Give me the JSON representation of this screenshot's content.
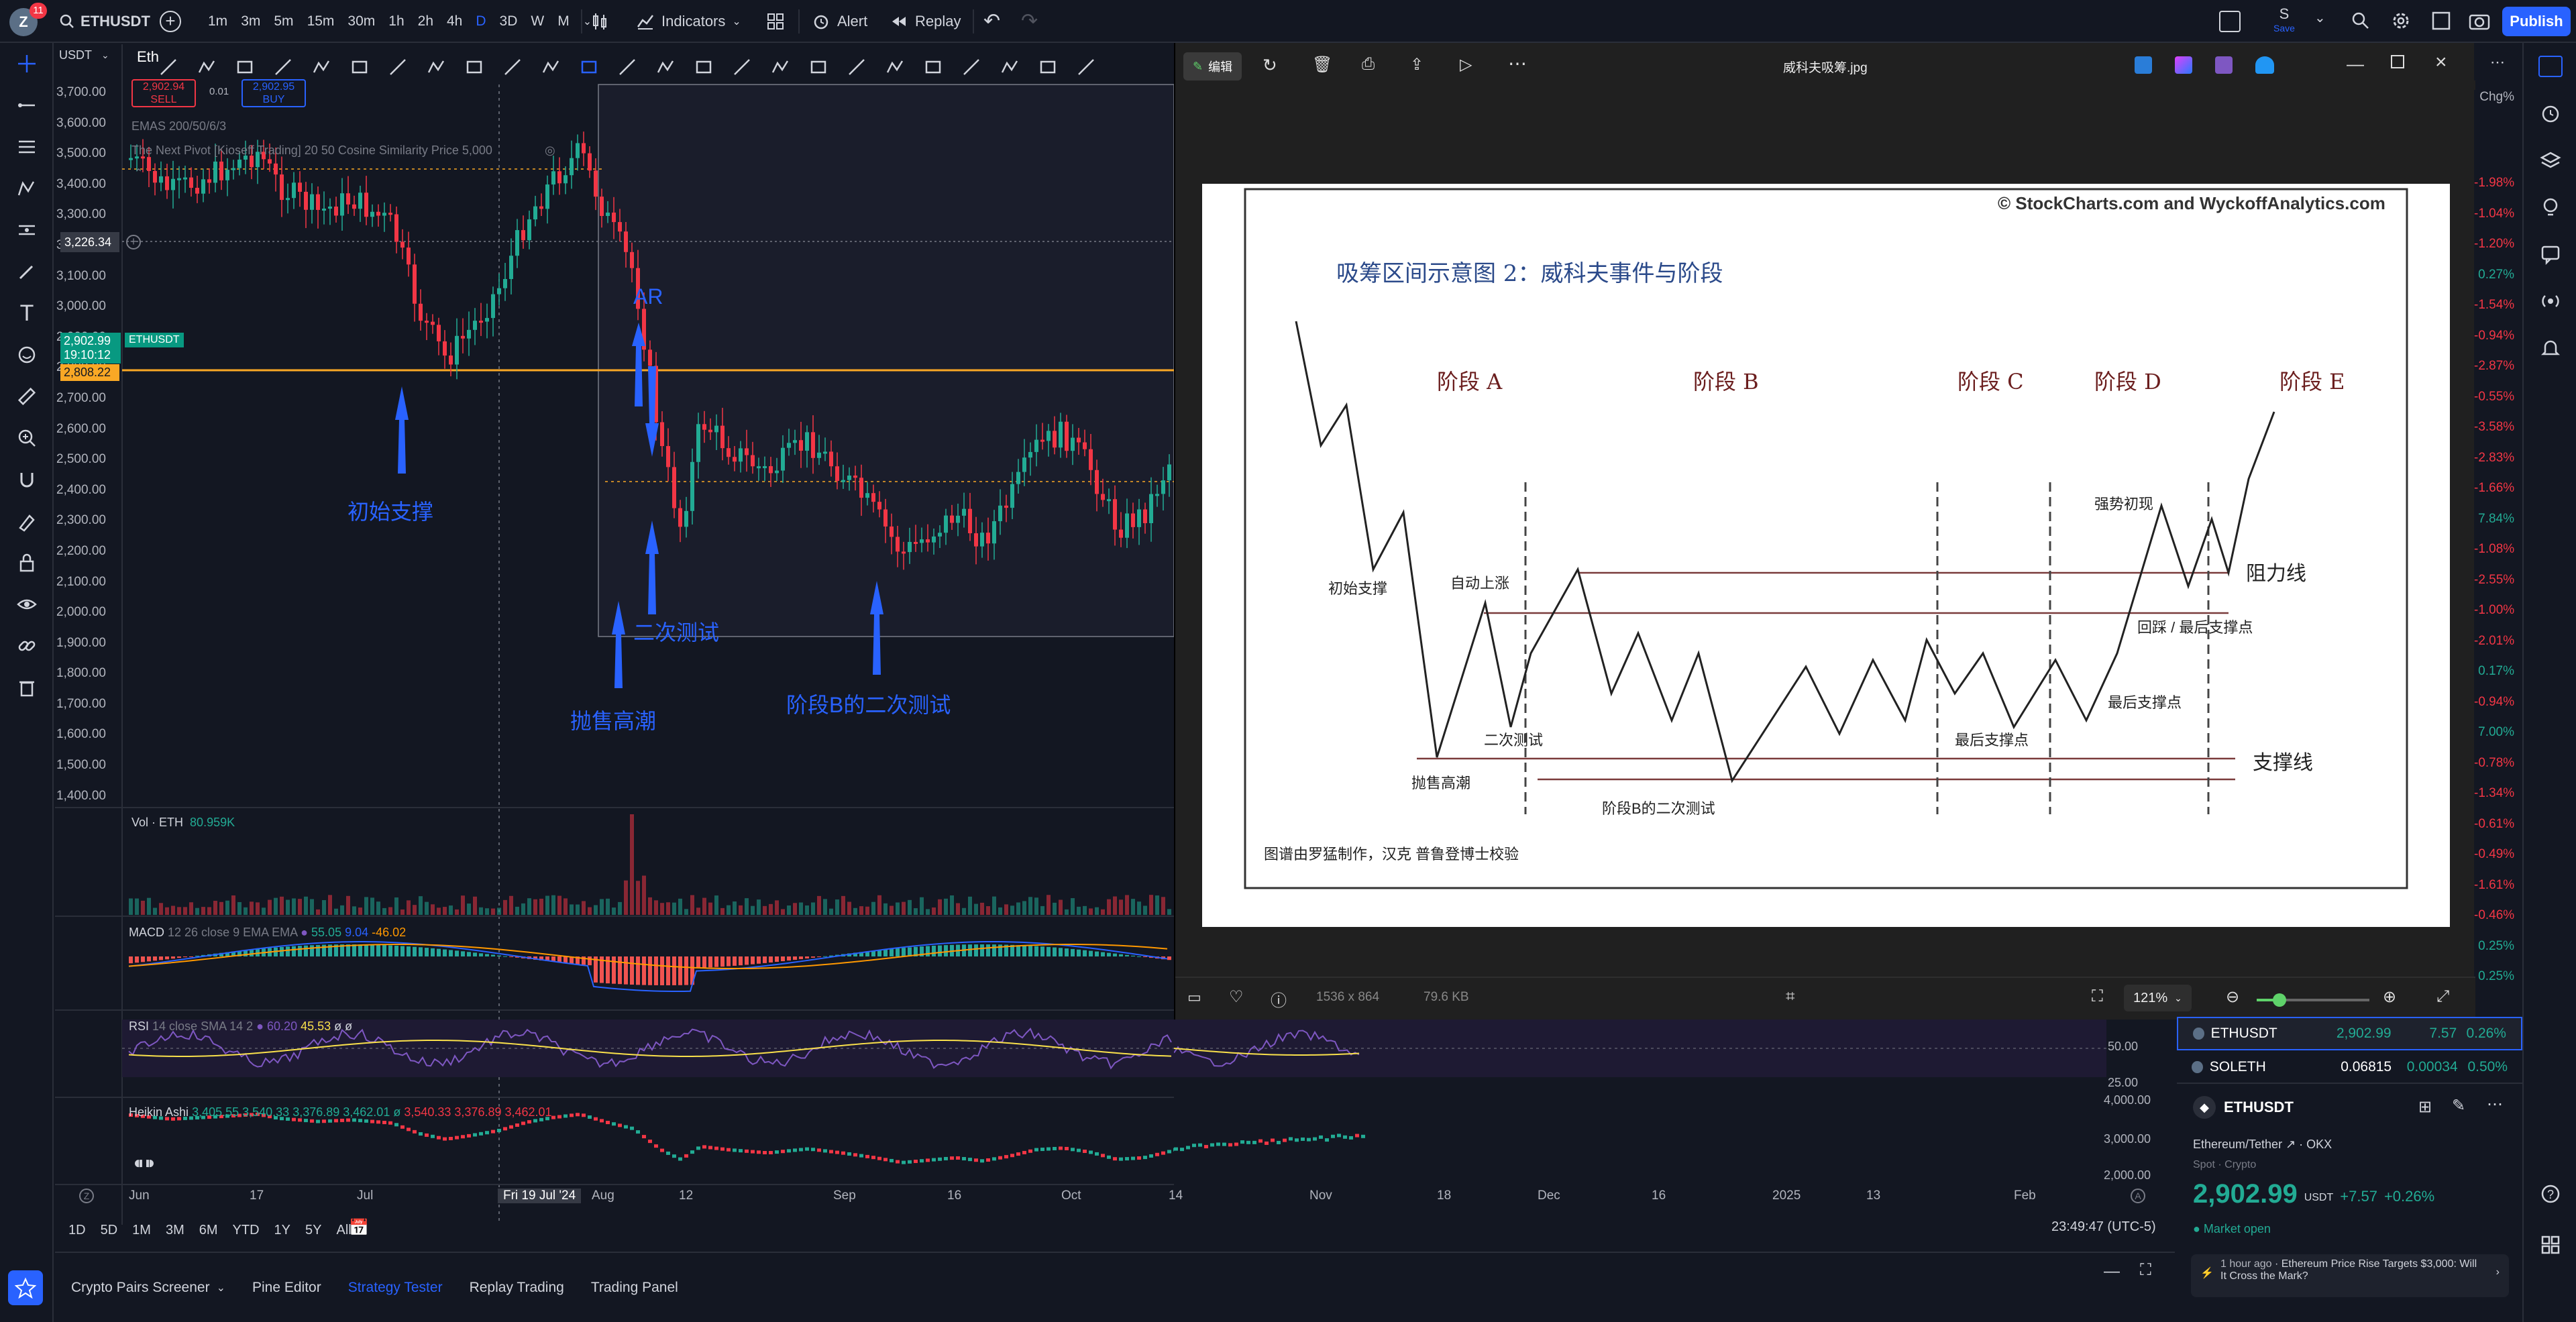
{
  "toolbar": {
    "user_initial": "Z",
    "notif_count": "11",
    "symbol": "ETHUSDT",
    "intervals": [
      "1m",
      "3m",
      "5m",
      "15m",
      "30m",
      "1h",
      "2h",
      "4h",
      "D",
      "3D",
      "W",
      "M"
    ],
    "active_interval": "D",
    "indicators": "Indicators",
    "alert": "Alert",
    "replay": "Replay",
    "layout_name": "S",
    "layout_sub": "Save",
    "publish": "Publish"
  },
  "legend": {
    "currency": "USDT",
    "symbol_short": "Eth",
    "sell_price": "2,902.94",
    "sell": "SELL",
    "spread": "0.01",
    "buy_price": "2,902.95",
    "buy": "BUY",
    "ema": "EMAS 200/50/6/3",
    "indicator2": "The Next Pivot [Kioseff Trading] 20 50 Cosine Similarity Price 5,000"
  },
  "price_axis": {
    "ticks": [
      "3,700.00",
      "3,600.00",
      "3,500.00",
      "3,400.00",
      "3,300.00",
      "3,200.00",
      "3,100.00",
      "3,000.00",
      "2,900.00",
      "2,800.00",
      "2,700.00",
      "2,600.00",
      "2,500.00",
      "2,400.00",
      "2,300.00",
      "2,200.00",
      "2,100.00",
      "2,000.00",
      "1,900.00",
      "1,800.00",
      "1,700.00",
      "1,600.00",
      "1,500.00",
      "1,400.00"
    ],
    "crosshair_price": "3,226.34",
    "last_price": "2,902.99",
    "countdown": "19:10:12",
    "symbol_tag": "ETHUSDT",
    "line_price": "2,808.22"
  },
  "annotations": {
    "initial_support": "初始支撑",
    "ar": "AR",
    "secondary_test": "二次测试",
    "selling_climax": "抛售高潮",
    "phase_b_test": "阶段B的二次测试"
  },
  "panes": {
    "vol": "Vol · ETH",
    "vol_val": "80.959K",
    "macd": "MACD",
    "macd_params": "12 26 close 9 EMA EMA",
    "macd_v1": "55.05",
    "macd_v2": "9.04",
    "macd_v3": "-46.02",
    "rsi": "RSI",
    "rsi_params": "14 close SMA 14 2",
    "rsi_v1": "60.20",
    "rsi_v2": "45.53",
    "rsi_v3": "ø",
    "rsi_v4": "ø",
    "rsi_t1": "50.00",
    "rsi_t2": "25.00",
    "ha": "Heikin Ashi",
    "ha_vals": "3,405.55  3,540.33  3,376.89  3,462.01  ø",
    "ha_vals2": "3,540.33  3,376.89  3,462.01",
    "ha_t1": "4,000.00",
    "ha_t2": "3,000.00",
    "ha_t3": "2,000.00"
  },
  "time_axis": {
    "labels": [
      "Jun",
      "17",
      "Jul",
      "Fri 19 Jul '24",
      "Aug",
      "12",
      "Sep",
      "16",
      "Oct",
      "14",
      "Nov",
      "18",
      "Dec",
      "16",
      "2025",
      "13",
      "Feb"
    ],
    "ranges": [
      "1D",
      "5D",
      "1M",
      "3M",
      "6M",
      "YTD",
      "1Y",
      "5Y",
      "All"
    ],
    "clock": "23:49:47 (UTC-5)"
  },
  "bottom_tabs": [
    "Crypto Pairs Screener",
    "Pine Editor",
    "Strategy Tester",
    "Replay Trading",
    "Trading Panel"
  ],
  "viewer": {
    "edit": "编辑",
    "filename": "威科夫吸筹.jpg",
    "dimensions": "1536 x 864",
    "size": "79.6 KB",
    "zoom": "121%"
  },
  "diagram": {
    "copyright": "© StockCharts.com and WyckoffAnalytics.com",
    "title": "吸筹区间示意图 2：威科夫事件与阶段",
    "phases": [
      "阶段 A",
      "阶段 B",
      "阶段 C",
      "阶段 D",
      "阶段 E"
    ],
    "resistance": "阻力线",
    "support": "支撑线",
    "ps": "初始支撑",
    "ar": "自动上涨",
    "st": "二次测试",
    "sc": "抛售高潮",
    "stb": "阶段B的二次测试",
    "lps1": "最后支撑点",
    "sos": "强势初现",
    "bu": "回踩 / 最后支撑点",
    "lps2": "最后支撑点",
    "credit": "图谱由罗猛制作，汉克 普鲁登博士校验"
  },
  "watchlist": {
    "header": "Chg%",
    "pcts": [
      {
        "v": "-1.98%",
        "c": "#f23645"
      },
      {
        "v": "-1.04%",
        "c": "#f23645"
      },
      {
        "v": "-1.20%",
        "c": "#f23645"
      },
      {
        "v": "0.27%",
        "c": "#22ab94"
      },
      {
        "v": "-1.54%",
        "c": "#f23645"
      },
      {
        "v": "-0.94%",
        "c": "#f23645"
      },
      {
        "v": "-2.87%",
        "c": "#f23645"
      },
      {
        "v": "-0.55%",
        "c": "#f23645"
      },
      {
        "v": "-3.58%",
        "c": "#f23645"
      },
      {
        "v": "-2.83%",
        "c": "#f23645"
      },
      {
        "v": "-1.66%",
        "c": "#f23645"
      },
      {
        "v": "7.84%",
        "c": "#22ab94"
      },
      {
        "v": "-1.08%",
        "c": "#f23645"
      },
      {
        "v": "-2.55%",
        "c": "#f23645"
      },
      {
        "v": "-1.00%",
        "c": "#f23645"
      },
      {
        "v": "-2.01%",
        "c": "#f23645"
      },
      {
        "v": "0.17%",
        "c": "#22ab94"
      },
      {
        "v": "-0.94%",
        "c": "#f23645"
      },
      {
        "v": "7.00%",
        "c": "#22ab94"
      },
      {
        "v": "-0.78%",
        "c": "#f23645"
      },
      {
        "v": "-1.34%",
        "c": "#f23645"
      },
      {
        "v": "-0.61%",
        "c": "#f23645"
      },
      {
        "v": "-0.49%",
        "c": "#f23645"
      },
      {
        "v": "-1.61%",
        "c": "#f23645"
      },
      {
        "v": "-0.46%",
        "c": "#f23645"
      },
      {
        "v": "0.25%",
        "c": "#22ab94"
      },
      {
        "v": "0.25%",
        "c": "#22ab94"
      }
    ],
    "rows": [
      {
        "sym": "ETHUSDT",
        "last": "2,902.99",
        "chg": "7.57",
        "pct": "0.26%"
      },
      {
        "sym": "SOLETH",
        "last": "0.06815",
        "chg": "0.00034",
        "pct": "0.50%"
      }
    ]
  },
  "details": {
    "symbol": "ETHUSDT",
    "name": "Ethereum/Tether",
    "exchange": "OKX",
    "type1": "Spot",
    "type2": "Crypto",
    "price": "2,902.99",
    "currency": "USDT",
    "change": "+7.57",
    "change_pct": "+0.26%",
    "status": "Market open",
    "news_time": "1 hour ago",
    "news_dash": "·",
    "news_text": "Ethereum Price Rise Targets $3,000: Will It Cross the Mark?"
  },
  "colors": {
    "up": "#22ab94",
    "down": "#f23645",
    "accent": "#2962ff",
    "annot": "#2962ff"
  }
}
